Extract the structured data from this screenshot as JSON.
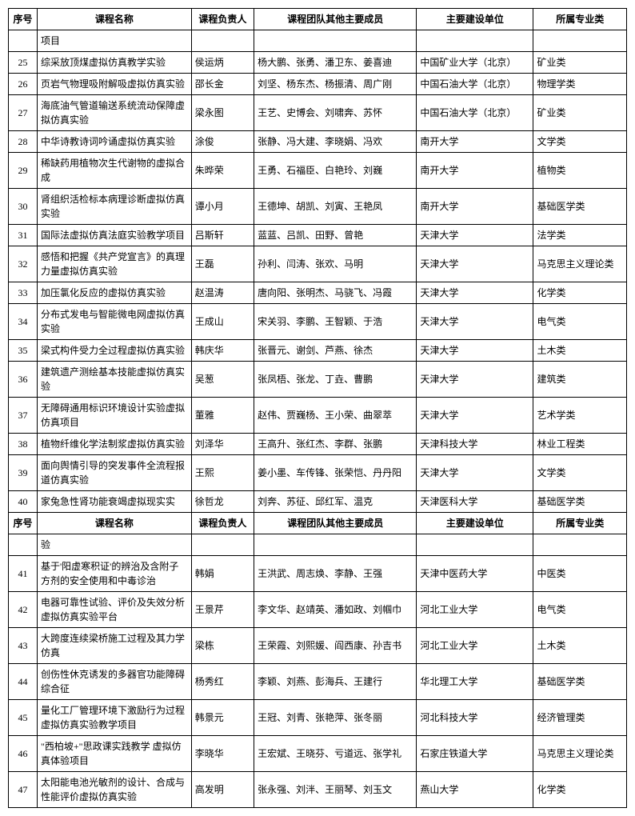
{
  "headers": {
    "num": "序号",
    "name": "课程名称",
    "leader": "课程负责人",
    "members": "课程团队其他主要成员",
    "unit": "主要建设单位",
    "major": "所属专业类"
  },
  "section1_top": {
    "name": "项目"
  },
  "section1": [
    {
      "num": "25",
      "name": "综采放顶煤虚拟仿真教学实验",
      "leader": "侯运炳",
      "members": "杨大鹏、张勇、潘卫东、姜喜迪",
      "unit": "中国矿业大学（北京）",
      "major": "矿业类"
    },
    {
      "num": "26",
      "name": "页岩气物理吸附解吸虚拟仿真实验",
      "leader": "邵长金",
      "members": "刘坚、杨东杰、杨振清、周广刚",
      "unit": "中国石油大学（北京）",
      "major": "物理学类"
    },
    {
      "num": "27",
      "name": "海底油气管道输送系统流动保障虚拟仿真实验",
      "leader": "梁永图",
      "members": "王艺、史博会、刘啸奔、苏怀",
      "unit": "中国石油大学（北京）",
      "major": "矿业类"
    },
    {
      "num": "28",
      "name": "中华诗教诗词吟诵虚拟仿真实验",
      "leader": "涂俊",
      "members": "张静、冯大建、李晓娟、冯欢",
      "unit": "南开大学",
      "major": "文学类"
    },
    {
      "num": "29",
      "name": "稀缺药用植物次生代谢物的虚拟合成",
      "leader": "朱晔荣",
      "members": "王勇、石福臣、白艳玲、刘巍",
      "unit": "南开大学",
      "major": "植物类"
    },
    {
      "num": "30",
      "name": "肾组织活检标本病理诊断虚拟仿真实验",
      "leader": "谭小月",
      "members": "王德坤、胡凯、刘寅、王艳凤",
      "unit": "南开大学",
      "major": "基础医学类"
    },
    {
      "num": "31",
      "name": "国际法虚拟仿真法庭实验教学项目",
      "leader": "吕斯轩",
      "members": "蓝蓝、吕凯、田野、曾艳",
      "unit": "天津大学",
      "major": "法学类"
    },
    {
      "num": "32",
      "name": "感悟和把握《共产党宣言》的真理力量虚拟仿真实验",
      "leader": "王磊",
      "members": "孙利、闫涛、张欢、马明",
      "unit": "天津大学",
      "major": "马克思主义理论类"
    },
    {
      "num": "33",
      "name": "加压氯化反应的虚拟仿真实验",
      "leader": "赵温涛",
      "members": "唐向阳、张明杰、马骁飞、冯霞",
      "unit": "天津大学",
      "major": "化学类"
    },
    {
      "num": "34",
      "name": "分布式发电与智能微电网虚拟仿真实验",
      "leader": "王成山",
      "members": "宋关羽、李鹏、王智颖、于浩",
      "unit": "天津大学",
      "major": "电气类"
    },
    {
      "num": "35",
      "name": "梁式构件受力全过程虚拟仿真实验",
      "leader": "韩庆华",
      "members": "张晋元、谢剑、芦燕、徐杰",
      "unit": "天津大学",
      "major": "土木类"
    },
    {
      "num": "36",
      "name": "建筑遗产测绘基本技能虚拟仿真实验",
      "leader": "吴葱",
      "members": "张凤梧、张龙、丁垚、曹鹏",
      "unit": "天津大学",
      "major": "建筑类"
    },
    {
      "num": "37",
      "name": "无障碍通用标识环境设计实验虚拟仿真项目",
      "leader": "董雅",
      "members": "赵伟、贾巍杨、王小荣、曲翠萃",
      "unit": "天津大学",
      "major": "艺术学类"
    },
    {
      "num": "38",
      "name": "植物纤维化学法制浆虚拟仿真实验",
      "leader": "刘泽华",
      "members": "王高升、张红杰、李群、张鹏",
      "unit": "天津科技大学",
      "major": "林业工程类"
    },
    {
      "num": "39",
      "name": "面向舆情引导的突发事件全流程报道仿真实验",
      "leader": "王熙",
      "members": "姜小墨、车传锋、张荣恺、丹丹阳",
      "unit": "天津大学",
      "major": "文学类"
    },
    {
      "num": "40",
      "name": "家兔急性肾功能衰竭虚拟现实实",
      "leader": "徐哲龙",
      "members": "刘奔、苏征、邱红军、温克",
      "unit": "天津医科大学",
      "major": "基础医学类"
    }
  ],
  "section2_top": {
    "name": "验"
  },
  "section2": [
    {
      "num": "41",
      "name": "基于'阳虚寒积证'的辨治及含附子方剂的安全使用和中毒诊治",
      "leader": "韩娟",
      "members": "王洪武、周志焕、李静、王强",
      "unit": "天津中医药大学",
      "major": "中医类"
    },
    {
      "num": "42",
      "name": "电器可靠性试验、评价及失效分析虚拟仿真实验平台",
      "leader": "王景芹",
      "members": "李文华、赵靖英、潘如政、刘帼巾",
      "unit": "河北工业大学",
      "major": "电气类"
    },
    {
      "num": "43",
      "name": "大跨度连续梁桥施工过程及其力学仿真",
      "leader": "梁栋",
      "members": "王荣霞、刘熙媛、阎西康、孙吉书",
      "unit": "河北工业大学",
      "major": "土木类"
    },
    {
      "num": "44",
      "name": "创伤性休克诱发的多器官功能障碍综合征",
      "leader": "杨秀红",
      "members": "李颖、刘燕、彭海兵、王建行",
      "unit": "华北理工大学",
      "major": "基础医学类"
    },
    {
      "num": "45",
      "name": "量化工厂管理环境下激励行为过程虚拟仿真实验教学项目",
      "leader": "韩景元",
      "members": "王冠、刘青、张艳萍、张冬丽",
      "unit": "河北科技大学",
      "major": "经济管理类"
    },
    {
      "num": "46",
      "name": "\"西柏坡+\"思政课实践教学 虚拟仿真体验项目",
      "leader": "李晓华",
      "members": "王宏斌、王晓芬、亏道远、张学礼",
      "unit": "石家庄铁道大学",
      "major": "马克思主义理论类"
    },
    {
      "num": "47",
      "name": "太阳能电池光敏剂的设计、合成与性能评价虚拟仿真实验",
      "leader": "高发明",
      "members": "张永强、刘泮、王丽琴、刘玉文",
      "unit": "燕山大学",
      "major": "化学类"
    }
  ]
}
